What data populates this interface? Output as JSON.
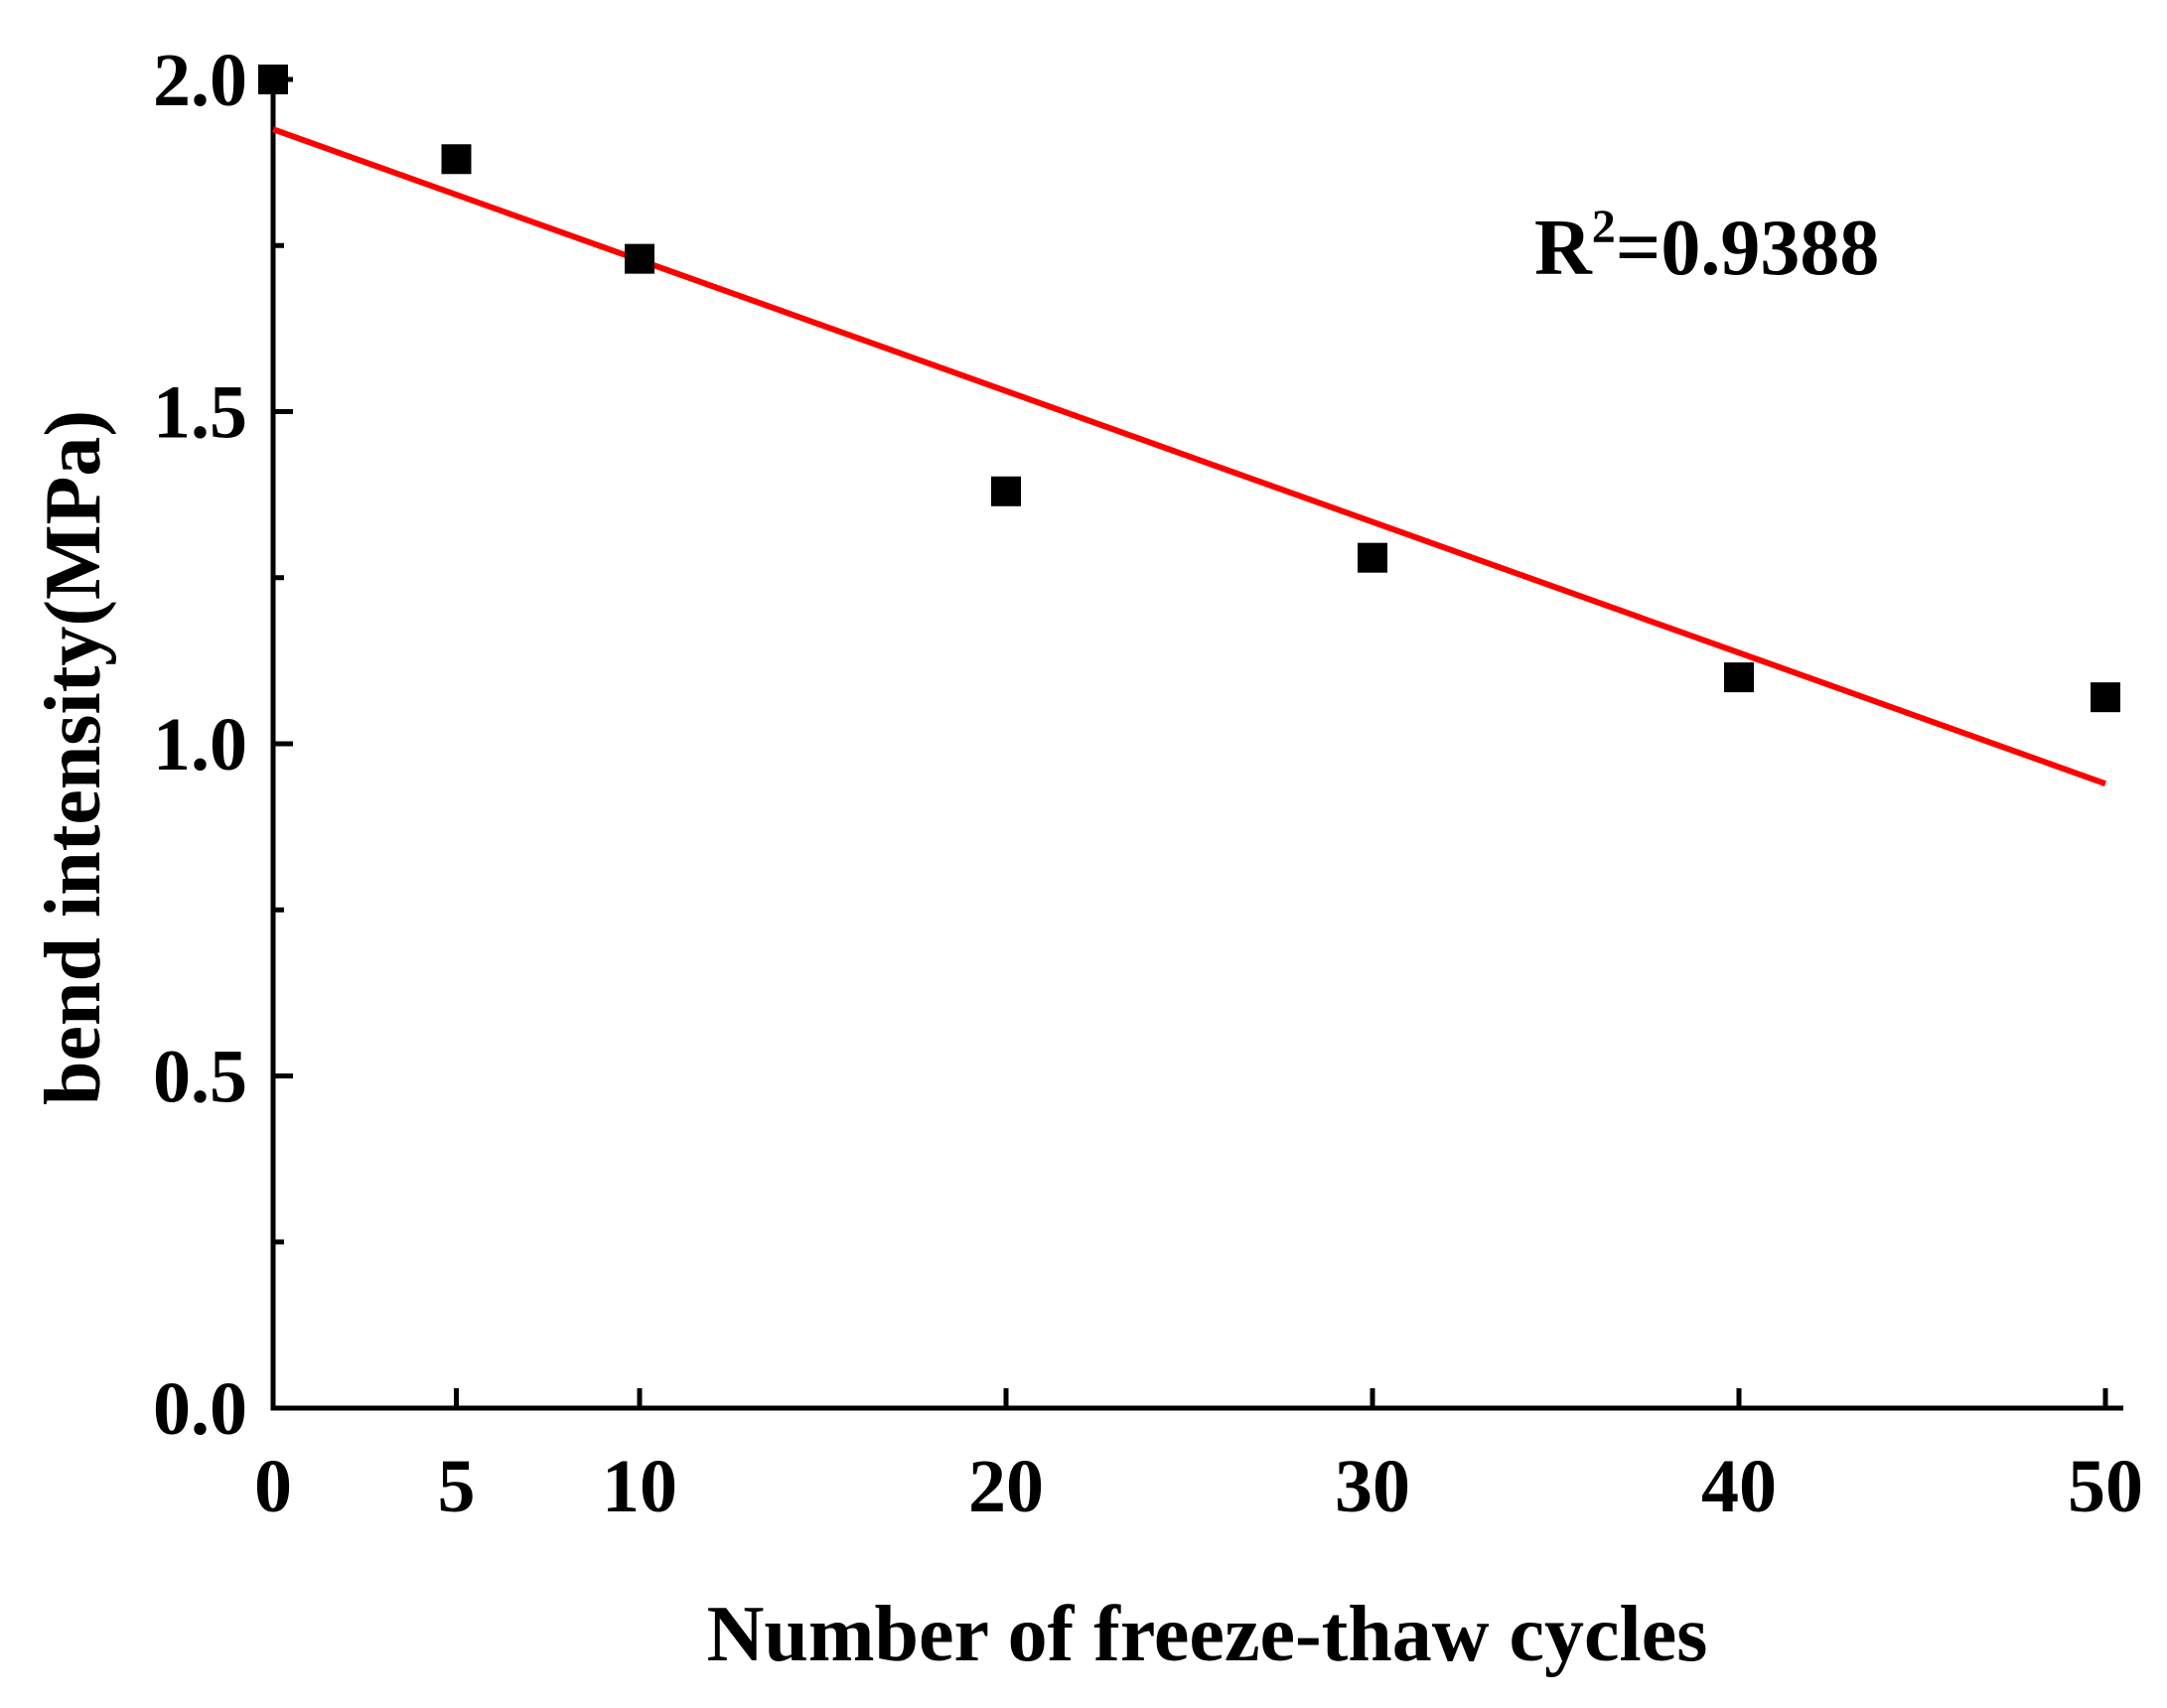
{
  "chart_data": {
    "type": "scatter",
    "title": "",
    "xlabel": "Number of freeze-thaw cycles",
    "ylabel": "bend intensity(MPa)",
    "x": [
      0,
      5,
      10,
      20,
      30,
      40,
      50
    ],
    "series": [
      {
        "name": "bend intensity",
        "marker": "square",
        "color": "#000000",
        "values": [
          2.0,
          1.88,
          1.73,
          1.38,
          1.28,
          1.1,
          1.07
        ]
      }
    ],
    "fit_line": {
      "type": "linear",
      "color": "#ff0000",
      "x": [
        0,
        50
      ],
      "y": [
        1.925,
        0.94
      ]
    },
    "xlim": [
      0,
      50
    ],
    "ylim": [
      0,
      2.0
    ],
    "xticks": [
      0,
      5,
      10,
      20,
      30,
      40,
      50
    ],
    "xtick_labels": [
      "0",
      "5",
      "10",
      "20",
      "30",
      "40",
      "50"
    ],
    "yticks": [
      0.0,
      0.5,
      1.0,
      1.5,
      2.0
    ],
    "ytick_labels": [
      "0.0",
      "0.5",
      "1.0",
      "1.5",
      "2.0"
    ],
    "y_minor_ticks": [
      0.25,
      0.75,
      1.25,
      1.75
    ],
    "grid": false,
    "annotation": {
      "base": "R",
      "sup": "2",
      "rest": "=0.9388"
    }
  }
}
